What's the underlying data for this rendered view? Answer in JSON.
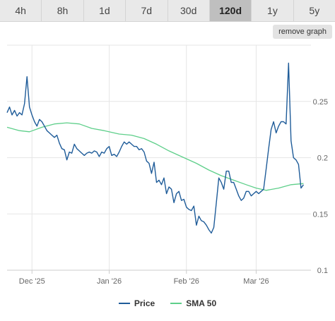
{
  "tabs": [
    {
      "label": "4h",
      "active": false
    },
    {
      "label": "8h",
      "active": false
    },
    {
      "label": "1d",
      "active": false
    },
    {
      "label": "7d",
      "active": false
    },
    {
      "label": "30d",
      "active": false
    },
    {
      "label": "120d",
      "active": true
    },
    {
      "label": "1y",
      "active": false
    },
    {
      "label": "5y",
      "active": false
    }
  ],
  "remove_graph_label": "remove graph",
  "colors": {
    "price": "#1f5c99",
    "sma": "#5ecf8a",
    "grid": "#e6e6e6",
    "axis": "#cccccc"
  },
  "chart_data": {
    "type": "line",
    "title": "",
    "xlabel": "",
    "ylabel": "",
    "x_ticks": [
      {
        "label": "Dec '25",
        "date": "2025-12-01"
      },
      {
        "label": "Jan '26",
        "date": "2026-01-01"
      },
      {
        "label": "Feb '26",
        "date": "2026-02-01"
      },
      {
        "label": "Mar '26",
        "date": "2026-03-01"
      }
    ],
    "y_ticks": [
      0.1,
      0.15,
      0.2,
      0.25
    ],
    "xlim": [
      "2025-11-21",
      "2026-03-23"
    ],
    "ylim": [
      0.1,
      0.3
    ],
    "grid": true,
    "legend": "bottom",
    "series": [
      {
        "name": "Price",
        "color": "#1f5c99",
        "points": [
          [
            "2025-11-21",
            0.24
          ],
          [
            "2025-11-22",
            0.245
          ],
          [
            "2025-11-23",
            0.238
          ],
          [
            "2025-11-24",
            0.242
          ],
          [
            "2025-11-25",
            0.237
          ],
          [
            "2025-11-26",
            0.24
          ],
          [
            "2025-11-27",
            0.238
          ],
          [
            "2025-11-28",
            0.248
          ],
          [
            "2025-11-29",
            0.272
          ],
          [
            "2025-11-30",
            0.245
          ],
          [
            "2025-12-01",
            0.238
          ],
          [
            "2025-12-02",
            0.232
          ],
          [
            "2025-12-03",
            0.228
          ],
          [
            "2025-12-04",
            0.234
          ],
          [
            "2025-12-05",
            0.232
          ],
          [
            "2025-12-06",
            0.228
          ],
          [
            "2025-12-07",
            0.224
          ],
          [
            "2025-12-08",
            0.222
          ],
          [
            "2025-12-09",
            0.22
          ],
          [
            "2025-12-10",
            0.218
          ],
          [
            "2025-12-11",
            0.22
          ],
          [
            "2025-12-12",
            0.213
          ],
          [
            "2025-12-13",
            0.208
          ],
          [
            "2025-12-14",
            0.207
          ],
          [
            "2025-12-15",
            0.198
          ],
          [
            "2025-12-16",
            0.205
          ],
          [
            "2025-12-17",
            0.204
          ],
          [
            "2025-12-18",
            0.212
          ],
          [
            "2025-12-19",
            0.208
          ],
          [
            "2025-12-20",
            0.206
          ],
          [
            "2025-12-21",
            0.204
          ],
          [
            "2025-12-22",
            0.202
          ],
          [
            "2025-12-23",
            0.204
          ],
          [
            "2025-12-24",
            0.205
          ],
          [
            "2025-12-25",
            0.204
          ],
          [
            "2025-12-26",
            0.206
          ],
          [
            "2025-12-27",
            0.205
          ],
          [
            "2025-12-28",
            0.201
          ],
          [
            "2025-12-29",
            0.205
          ],
          [
            "2025-12-30",
            0.204
          ],
          [
            "2025-12-31",
            0.208
          ],
          [
            "2026-01-01",
            0.21
          ],
          [
            "2026-01-02",
            0.202
          ],
          [
            "2026-01-03",
            0.203
          ],
          [
            "2026-01-04",
            0.201
          ],
          [
            "2026-01-05",
            0.205
          ],
          [
            "2026-01-06",
            0.21
          ],
          [
            "2026-01-07",
            0.214
          ],
          [
            "2026-01-08",
            0.212
          ],
          [
            "2026-01-09",
            0.214
          ],
          [
            "2026-01-10",
            0.212
          ],
          [
            "2026-01-11",
            0.21
          ],
          [
            "2026-01-12",
            0.21
          ],
          [
            "2026-01-13",
            0.207
          ],
          [
            "2026-01-14",
            0.208
          ],
          [
            "2026-01-15",
            0.205
          ],
          [
            "2026-01-16",
            0.197
          ],
          [
            "2026-01-17",
            0.195
          ],
          [
            "2026-01-18",
            0.186
          ],
          [
            "2026-01-19",
            0.196
          ],
          [
            "2026-01-20",
            0.178
          ],
          [
            "2026-01-21",
            0.18
          ],
          [
            "2026-01-22",
            0.176
          ],
          [
            "2026-01-23",
            0.182
          ],
          [
            "2026-01-24",
            0.168
          ],
          [
            "2026-01-25",
            0.174
          ],
          [
            "2026-01-26",
            0.172
          ],
          [
            "2026-01-27",
            0.16
          ],
          [
            "2026-01-28",
            0.168
          ],
          [
            "2026-01-29",
            0.17
          ],
          [
            "2026-01-30",
            0.162
          ],
          [
            "2026-01-31",
            0.163
          ],
          [
            "2026-02-01",
            0.156
          ],
          [
            "2026-02-02",
            0.154
          ],
          [
            "2026-02-03",
            0.153
          ],
          [
            "2026-02-04",
            0.157
          ],
          [
            "2026-02-05",
            0.14
          ],
          [
            "2026-02-06",
            0.148
          ],
          [
            "2026-02-07",
            0.144
          ],
          [
            "2026-02-08",
            0.143
          ],
          [
            "2026-02-09",
            0.14
          ],
          [
            "2026-02-10",
            0.136
          ],
          [
            "2026-02-11",
            0.133
          ],
          [
            "2026-02-12",
            0.138
          ],
          [
            "2026-02-13",
            0.16
          ],
          [
            "2026-02-14",
            0.182
          ],
          [
            "2026-02-15",
            0.178
          ],
          [
            "2026-02-16",
            0.172
          ],
          [
            "2026-02-17",
            0.188
          ],
          [
            "2026-02-18",
            0.188
          ],
          [
            "2026-02-19",
            0.178
          ],
          [
            "2026-02-20",
            0.178
          ],
          [
            "2026-02-21",
            0.172
          ],
          [
            "2026-02-22",
            0.166
          ],
          [
            "2026-02-23",
            0.162
          ],
          [
            "2026-02-24",
            0.164
          ],
          [
            "2026-02-25",
            0.17
          ],
          [
            "2026-02-26",
            0.17
          ],
          [
            "2026-02-27",
            0.166
          ],
          [
            "2026-02-28",
            0.168
          ],
          [
            "2026-03-01",
            0.17
          ],
          [
            "2026-03-02",
            0.168
          ],
          [
            "2026-03-03",
            0.17
          ],
          [
            "2026-03-04",
            0.172
          ],
          [
            "2026-03-05",
            0.19
          ],
          [
            "2026-03-06",
            0.208
          ],
          [
            "2026-03-07",
            0.225
          ],
          [
            "2026-03-08",
            0.232
          ],
          [
            "2026-03-09",
            0.222
          ],
          [
            "2026-03-10",
            0.228
          ],
          [
            "2026-03-11",
            0.232
          ],
          [
            "2026-03-12",
            0.232
          ],
          [
            "2026-03-13",
            0.23
          ],
          [
            "2026-03-14",
            0.284
          ],
          [
            "2026-03-15",
            0.215
          ],
          [
            "2026-03-16",
            0.2
          ],
          [
            "2026-03-17",
            0.198
          ],
          [
            "2026-03-18",
            0.194
          ],
          [
            "2026-03-19",
            0.173
          ],
          [
            "2026-03-20",
            0.176
          ]
        ]
      },
      {
        "name": "SMA 50",
        "color": "#5ecf8a",
        "points": [
          [
            "2025-11-21",
            0.227
          ],
          [
            "2025-11-26",
            0.224
          ],
          [
            "2025-11-30",
            0.223
          ],
          [
            "2025-12-05",
            0.227
          ],
          [
            "2025-12-10",
            0.23
          ],
          [
            "2025-12-15",
            0.231
          ],
          [
            "2025-12-20",
            0.23
          ],
          [
            "2025-12-25",
            0.226
          ],
          [
            "2025-12-30",
            0.224
          ],
          [
            "2026-01-05",
            0.221
          ],
          [
            "2026-01-10",
            0.22
          ],
          [
            "2026-01-15",
            0.217
          ],
          [
            "2026-01-20",
            0.212
          ],
          [
            "2026-01-25",
            0.206
          ],
          [
            "2026-01-30",
            0.201
          ],
          [
            "2026-02-05",
            0.195
          ],
          [
            "2026-02-10",
            0.189
          ],
          [
            "2026-02-15",
            0.184
          ],
          [
            "2026-02-20",
            0.18
          ],
          [
            "2026-02-25",
            0.176
          ],
          [
            "2026-03-01",
            0.173
          ],
          [
            "2026-03-05",
            0.171
          ],
          [
            "2026-03-10",
            0.173
          ],
          [
            "2026-03-15",
            0.176
          ],
          [
            "2026-03-20",
            0.177
          ]
        ]
      }
    ]
  }
}
